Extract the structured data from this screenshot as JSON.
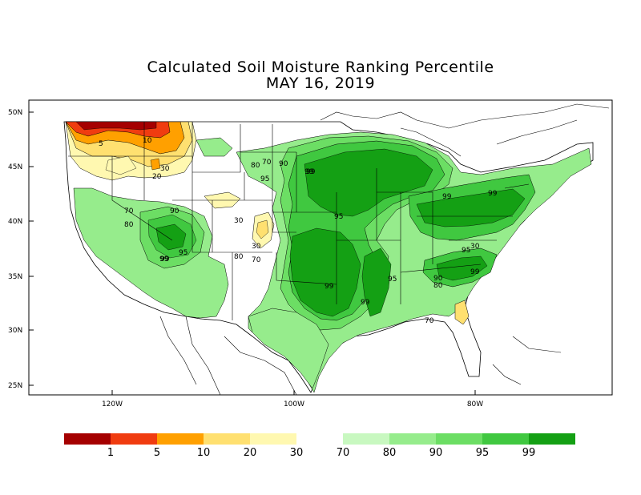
{
  "title": {
    "line1": "Calculated Soil Moisture Ranking Percentile",
    "line2": "MAY 16, 2019"
  },
  "axes": {
    "lat_labels": [
      "50N",
      "45N",
      "40N",
      "35N",
      "30N",
      "25N"
    ],
    "lon_labels": [
      "120W",
      "100W",
      "80W"
    ]
  },
  "contour_labels": [
    "5",
    "10",
    "30",
    "20",
    "80",
    "70",
    "90",
    "95",
    "99",
    "99",
    "70",
    "80",
    "90",
    "95",
    "99",
    "30",
    "30",
    "80",
    "70",
    "95",
    "99",
    "99",
    "99",
    "95",
    "99",
    "90",
    "80",
    "95",
    "70",
    "99",
    "30",
    "99"
  ],
  "legend": {
    "swatch_colors": [
      "#a50000",
      "#f03c10",
      "#ffa000",
      "#ffe070",
      "#fff8b0",
      "#ffffff",
      "#c8f8c0",
      "#96ec8c",
      "#6cde64",
      "#40c840",
      "#14a014"
    ],
    "labels": [
      "1",
      "5",
      "10",
      "20",
      "30",
      "70",
      "80",
      "90",
      "95",
      "99"
    ]
  },
  "colors": {
    "very_dry": "#a50000",
    "dry": "#f03c10",
    "moderately_dry": "#ffa000",
    "slightly_dry": "#ffe070",
    "abnormally_dry": "#fff8b0",
    "slightly_wet": "#c8f8c0",
    "wet": "#96ec8c",
    "moderately_wet": "#6cde64",
    "very_wet": "#40c840",
    "extremely_wet": "#14a014"
  }
}
